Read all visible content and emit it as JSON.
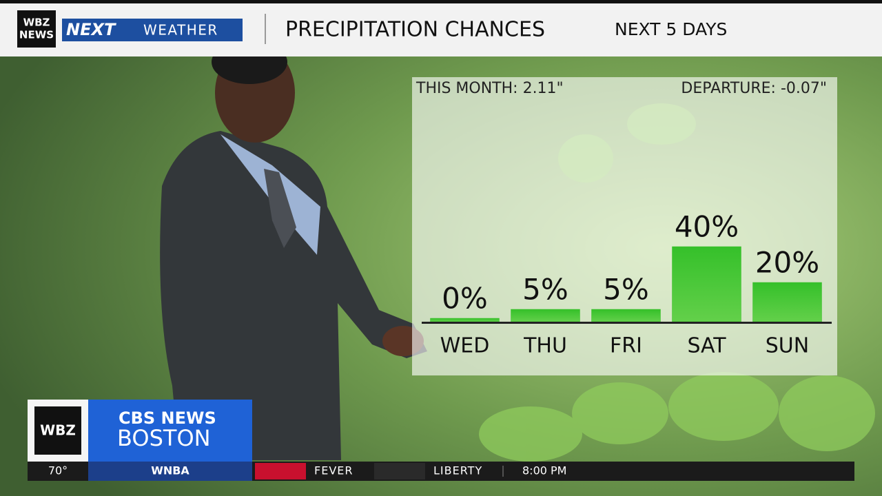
{
  "header": {
    "logo_line1": "WBZ",
    "logo_line2": "NEWS",
    "brand_next": "NEXT",
    "brand_weather": "WEATHER",
    "title": "PRECIPITATION CHANCES",
    "subtitle": "NEXT 5 DAYS"
  },
  "stats": {
    "this_month": "THIS MONTH:  2.11\"",
    "departure": "DEPARTURE:  -0.07\""
  },
  "chart_data": {
    "type": "bar",
    "categories": [
      "WED",
      "THU",
      "FRI",
      "SAT",
      "SUN"
    ],
    "values": [
      0,
      5,
      5,
      40,
      20
    ],
    "value_labels": [
      "0%",
      "5%",
      "5%",
      "40%",
      "20%"
    ],
    "color": "#3cbf2c"
  },
  "lower_third": {
    "badge": "WBZ",
    "network": "CBS NEWS",
    "city": "BOSTON"
  },
  "ticker": {
    "temperature": "70°",
    "league": "WNBA",
    "team1": "FEVER",
    "team2": "LIBERTY",
    "time": "8:00 PM"
  }
}
